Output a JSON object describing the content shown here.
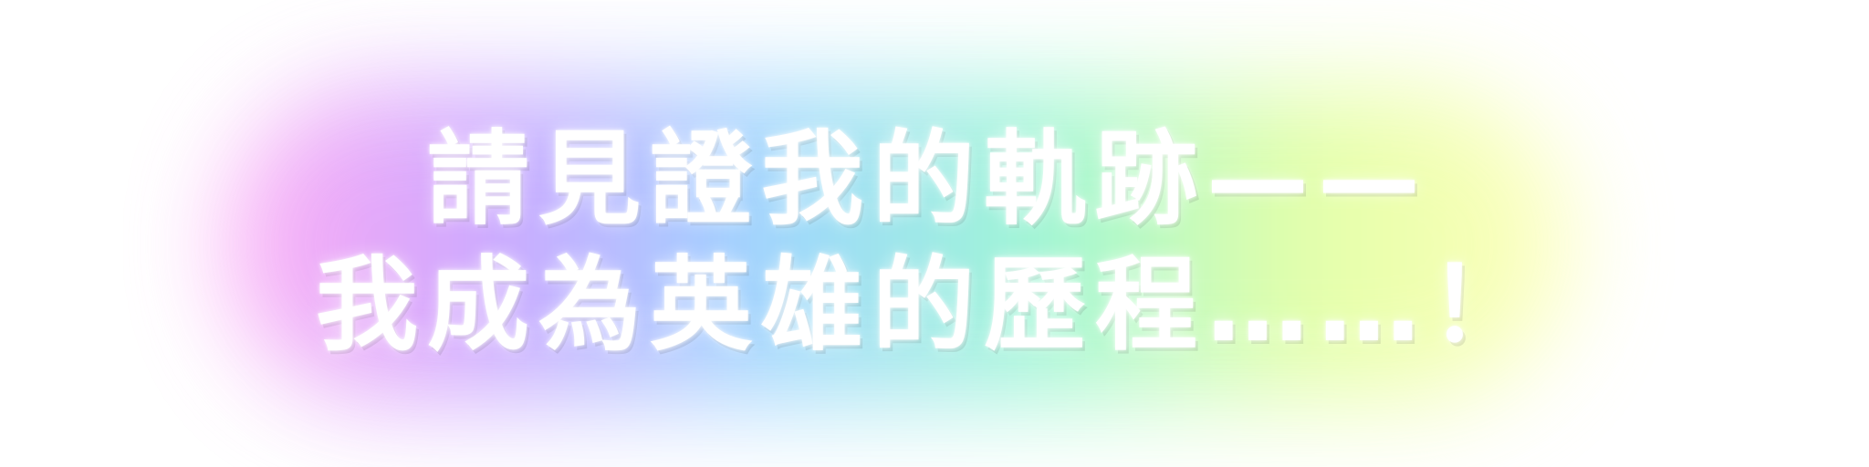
{
  "headline": {
    "line1": "請見證我的軌跡——",
    "line2": "我成為英雄的歷程……！"
  },
  "glow_colors": [
    "#ff9cf2",
    "#c49bff",
    "#8fd0ff",
    "#8ff5d0",
    "#dfff9a",
    "#ffffb0"
  ]
}
